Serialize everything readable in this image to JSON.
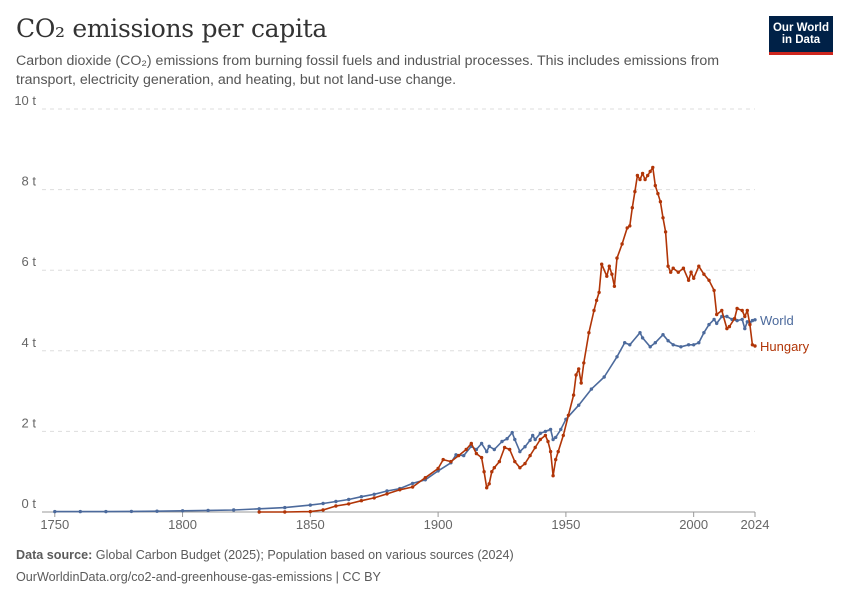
{
  "header": {
    "title": "CO₂ emissions per capita",
    "subtitle": "Carbon dioxide (CO₂) emissions from burning fossil fuels and industrial processes. This includes emissions from transport, electricity generation, and heating, but not land-use change."
  },
  "logo": {
    "line1": "Our World",
    "line2": "in Data",
    "bg": "#002147",
    "accent": "#ce261e"
  },
  "footer": {
    "source_label": "Data source:",
    "source_text": " Global Carbon Budget (2025); Population based on various sources (2024)",
    "url_text": "OurWorldinData.org/co2-and-greenhouse-gas-emissions | CC BY"
  },
  "chart_data": {
    "type": "line",
    "title": "CO₂ emissions per capita",
    "xlim": [
      1745,
      2024
    ],
    "ylim": [
      0,
      10
    ],
    "x_ticks": [
      1750,
      1800,
      1850,
      1900,
      1950,
      2000,
      2024
    ],
    "y_ticks": [
      0,
      2,
      4,
      6,
      8,
      10
    ],
    "y_tick_labels": [
      "0 t",
      "2 t",
      "4 t",
      "6 t",
      "8 t",
      "10 t"
    ],
    "grid": "horizontal-dashed",
    "series": [
      {
        "name": "World",
        "color": "#4c6a9c",
        "points": [
          [
            1750,
            0.01
          ],
          [
            1760,
            0.01
          ],
          [
            1770,
            0.01
          ],
          [
            1780,
            0.015
          ],
          [
            1790,
            0.02
          ],
          [
            1800,
            0.03
          ],
          [
            1810,
            0.04
          ],
          [
            1820,
            0.05
          ],
          [
            1830,
            0.08
          ],
          [
            1840,
            0.11
          ],
          [
            1850,
            0.17
          ],
          [
            1855,
            0.21
          ],
          [
            1860,
            0.26
          ],
          [
            1865,
            0.31
          ],
          [
            1870,
            0.38
          ],
          [
            1875,
            0.44
          ],
          [
            1880,
            0.52
          ],
          [
            1885,
            0.58
          ],
          [
            1890,
            0.71
          ],
          [
            1895,
            0.8
          ],
          [
            1900,
            1.02
          ],
          [
            1905,
            1.22
          ],
          [
            1907,
            1.42
          ],
          [
            1910,
            1.4
          ],
          [
            1913,
            1.63
          ],
          [
            1915,
            1.55
          ],
          [
            1917,
            1.7
          ],
          [
            1919,
            1.5
          ],
          [
            1920,
            1.63
          ],
          [
            1922,
            1.55
          ],
          [
            1925,
            1.75
          ],
          [
            1927,
            1.82
          ],
          [
            1929,
            1.97
          ],
          [
            1930,
            1.8
          ],
          [
            1932,
            1.5
          ],
          [
            1934,
            1.62
          ],
          [
            1936,
            1.78
          ],
          [
            1937,
            1.9
          ],
          [
            1938,
            1.8
          ],
          [
            1940,
            1.95
          ],
          [
            1942,
            2.0
          ],
          [
            1944,
            2.05
          ],
          [
            1945,
            1.8
          ],
          [
            1946,
            1.85
          ],
          [
            1948,
            2.05
          ],
          [
            1950,
            2.3
          ],
          [
            1955,
            2.65
          ],
          [
            1960,
            3.05
          ],
          [
            1965,
            3.35
          ],
          [
            1970,
            3.85
          ],
          [
            1973,
            4.2
          ],
          [
            1975,
            4.15
          ],
          [
            1979,
            4.45
          ],
          [
            1980,
            4.32
          ],
          [
            1983,
            4.1
          ],
          [
            1985,
            4.2
          ],
          [
            1988,
            4.4
          ],
          [
            1990,
            4.25
          ],
          [
            1992,
            4.15
          ],
          [
            1995,
            4.1
          ],
          [
            1998,
            4.15
          ],
          [
            2000,
            4.15
          ],
          [
            2002,
            4.2
          ],
          [
            2004,
            4.45
          ],
          [
            2006,
            4.65
          ],
          [
            2008,
            4.78
          ],
          [
            2009,
            4.68
          ],
          [
            2011,
            4.85
          ],
          [
            2013,
            4.85
          ],
          [
            2015,
            4.78
          ],
          [
            2017,
            4.75
          ],
          [
            2019,
            4.78
          ],
          [
            2020,
            4.55
          ],
          [
            2021,
            4.72
          ],
          [
            2022,
            4.7
          ],
          [
            2023,
            4.75
          ],
          [
            2024,
            4.77
          ]
        ]
      },
      {
        "name": "Hungary",
        "color": "#b13507",
        "points": [
          [
            1830,
            0.0
          ],
          [
            1840,
            0.0
          ],
          [
            1850,
            0.01
          ],
          [
            1855,
            0.05
          ],
          [
            1860,
            0.15
          ],
          [
            1865,
            0.2
          ],
          [
            1870,
            0.28
          ],
          [
            1875,
            0.35
          ],
          [
            1880,
            0.45
          ],
          [
            1885,
            0.55
          ],
          [
            1890,
            0.62
          ],
          [
            1895,
            0.85
          ],
          [
            1900,
            1.08
          ],
          [
            1902,
            1.3
          ],
          [
            1905,
            1.25
          ],
          [
            1908,
            1.4
          ],
          [
            1911,
            1.55
          ],
          [
            1913,
            1.7
          ],
          [
            1915,
            1.45
          ],
          [
            1917,
            1.35
          ],
          [
            1918,
            1.0
          ],
          [
            1919,
            0.6
          ],
          [
            1920,
            0.7
          ],
          [
            1921,
            1.0
          ],
          [
            1922,
            1.1
          ],
          [
            1924,
            1.25
          ],
          [
            1926,
            1.6
          ],
          [
            1928,
            1.55
          ],
          [
            1930,
            1.25
          ],
          [
            1932,
            1.1
          ],
          [
            1934,
            1.2
          ],
          [
            1936,
            1.4
          ],
          [
            1938,
            1.6
          ],
          [
            1940,
            1.8
          ],
          [
            1942,
            1.9
          ],
          [
            1943,
            1.75
          ],
          [
            1944,
            1.5
          ],
          [
            1945,
            0.9
          ],
          [
            1946,
            1.3
          ],
          [
            1947,
            1.5
          ],
          [
            1949,
            1.9
          ],
          [
            1951,
            2.4
          ],
          [
            1953,
            2.9
          ],
          [
            1954,
            3.4
          ],
          [
            1955,
            3.55
          ],
          [
            1956,
            3.2
          ],
          [
            1957,
            3.7
          ],
          [
            1959,
            4.45
          ],
          [
            1961,
            5.0
          ],
          [
            1962,
            5.25
          ],
          [
            1963,
            5.45
          ],
          [
            1964,
            6.15
          ],
          [
            1966,
            5.85
          ],
          [
            1967,
            6.1
          ],
          [
            1968,
            5.9
          ],
          [
            1969,
            5.6
          ],
          [
            1970,
            6.3
          ],
          [
            1972,
            6.65
          ],
          [
            1974,
            7.05
          ],
          [
            1975,
            7.1
          ],
          [
            1976,
            7.55
          ],
          [
            1977,
            7.95
          ],
          [
            1978,
            8.35
          ],
          [
            1979,
            8.25
          ],
          [
            1980,
            8.4
          ],
          [
            1981,
            8.25
          ],
          [
            1982,
            8.35
          ],
          [
            1983,
            8.45
          ],
          [
            1984,
            8.55
          ],
          [
            1985,
            8.1
          ],
          [
            1986,
            7.9
          ],
          [
            1987,
            7.7
          ],
          [
            1988,
            7.3
          ],
          [
            1989,
            6.95
          ],
          [
            1990,
            6.1
          ],
          [
            1991,
            5.95
          ],
          [
            1992,
            6.05
          ],
          [
            1994,
            5.95
          ],
          [
            1996,
            6.05
          ],
          [
            1998,
            5.75
          ],
          [
            1999,
            5.95
          ],
          [
            2000,
            5.8
          ],
          [
            2002,
            6.1
          ],
          [
            2004,
            5.9
          ],
          [
            2006,
            5.75
          ],
          [
            2008,
            5.5
          ],
          [
            2009,
            4.9
          ],
          [
            2011,
            5.0
          ],
          [
            2013,
            4.55
          ],
          [
            2014,
            4.6
          ],
          [
            2016,
            4.8
          ],
          [
            2017,
            5.05
          ],
          [
            2019,
            5.0
          ],
          [
            2020,
            4.85
          ],
          [
            2021,
            5.0
          ],
          [
            2022,
            4.65
          ],
          [
            2023,
            4.15
          ],
          [
            2024,
            4.12
          ]
        ]
      }
    ]
  }
}
